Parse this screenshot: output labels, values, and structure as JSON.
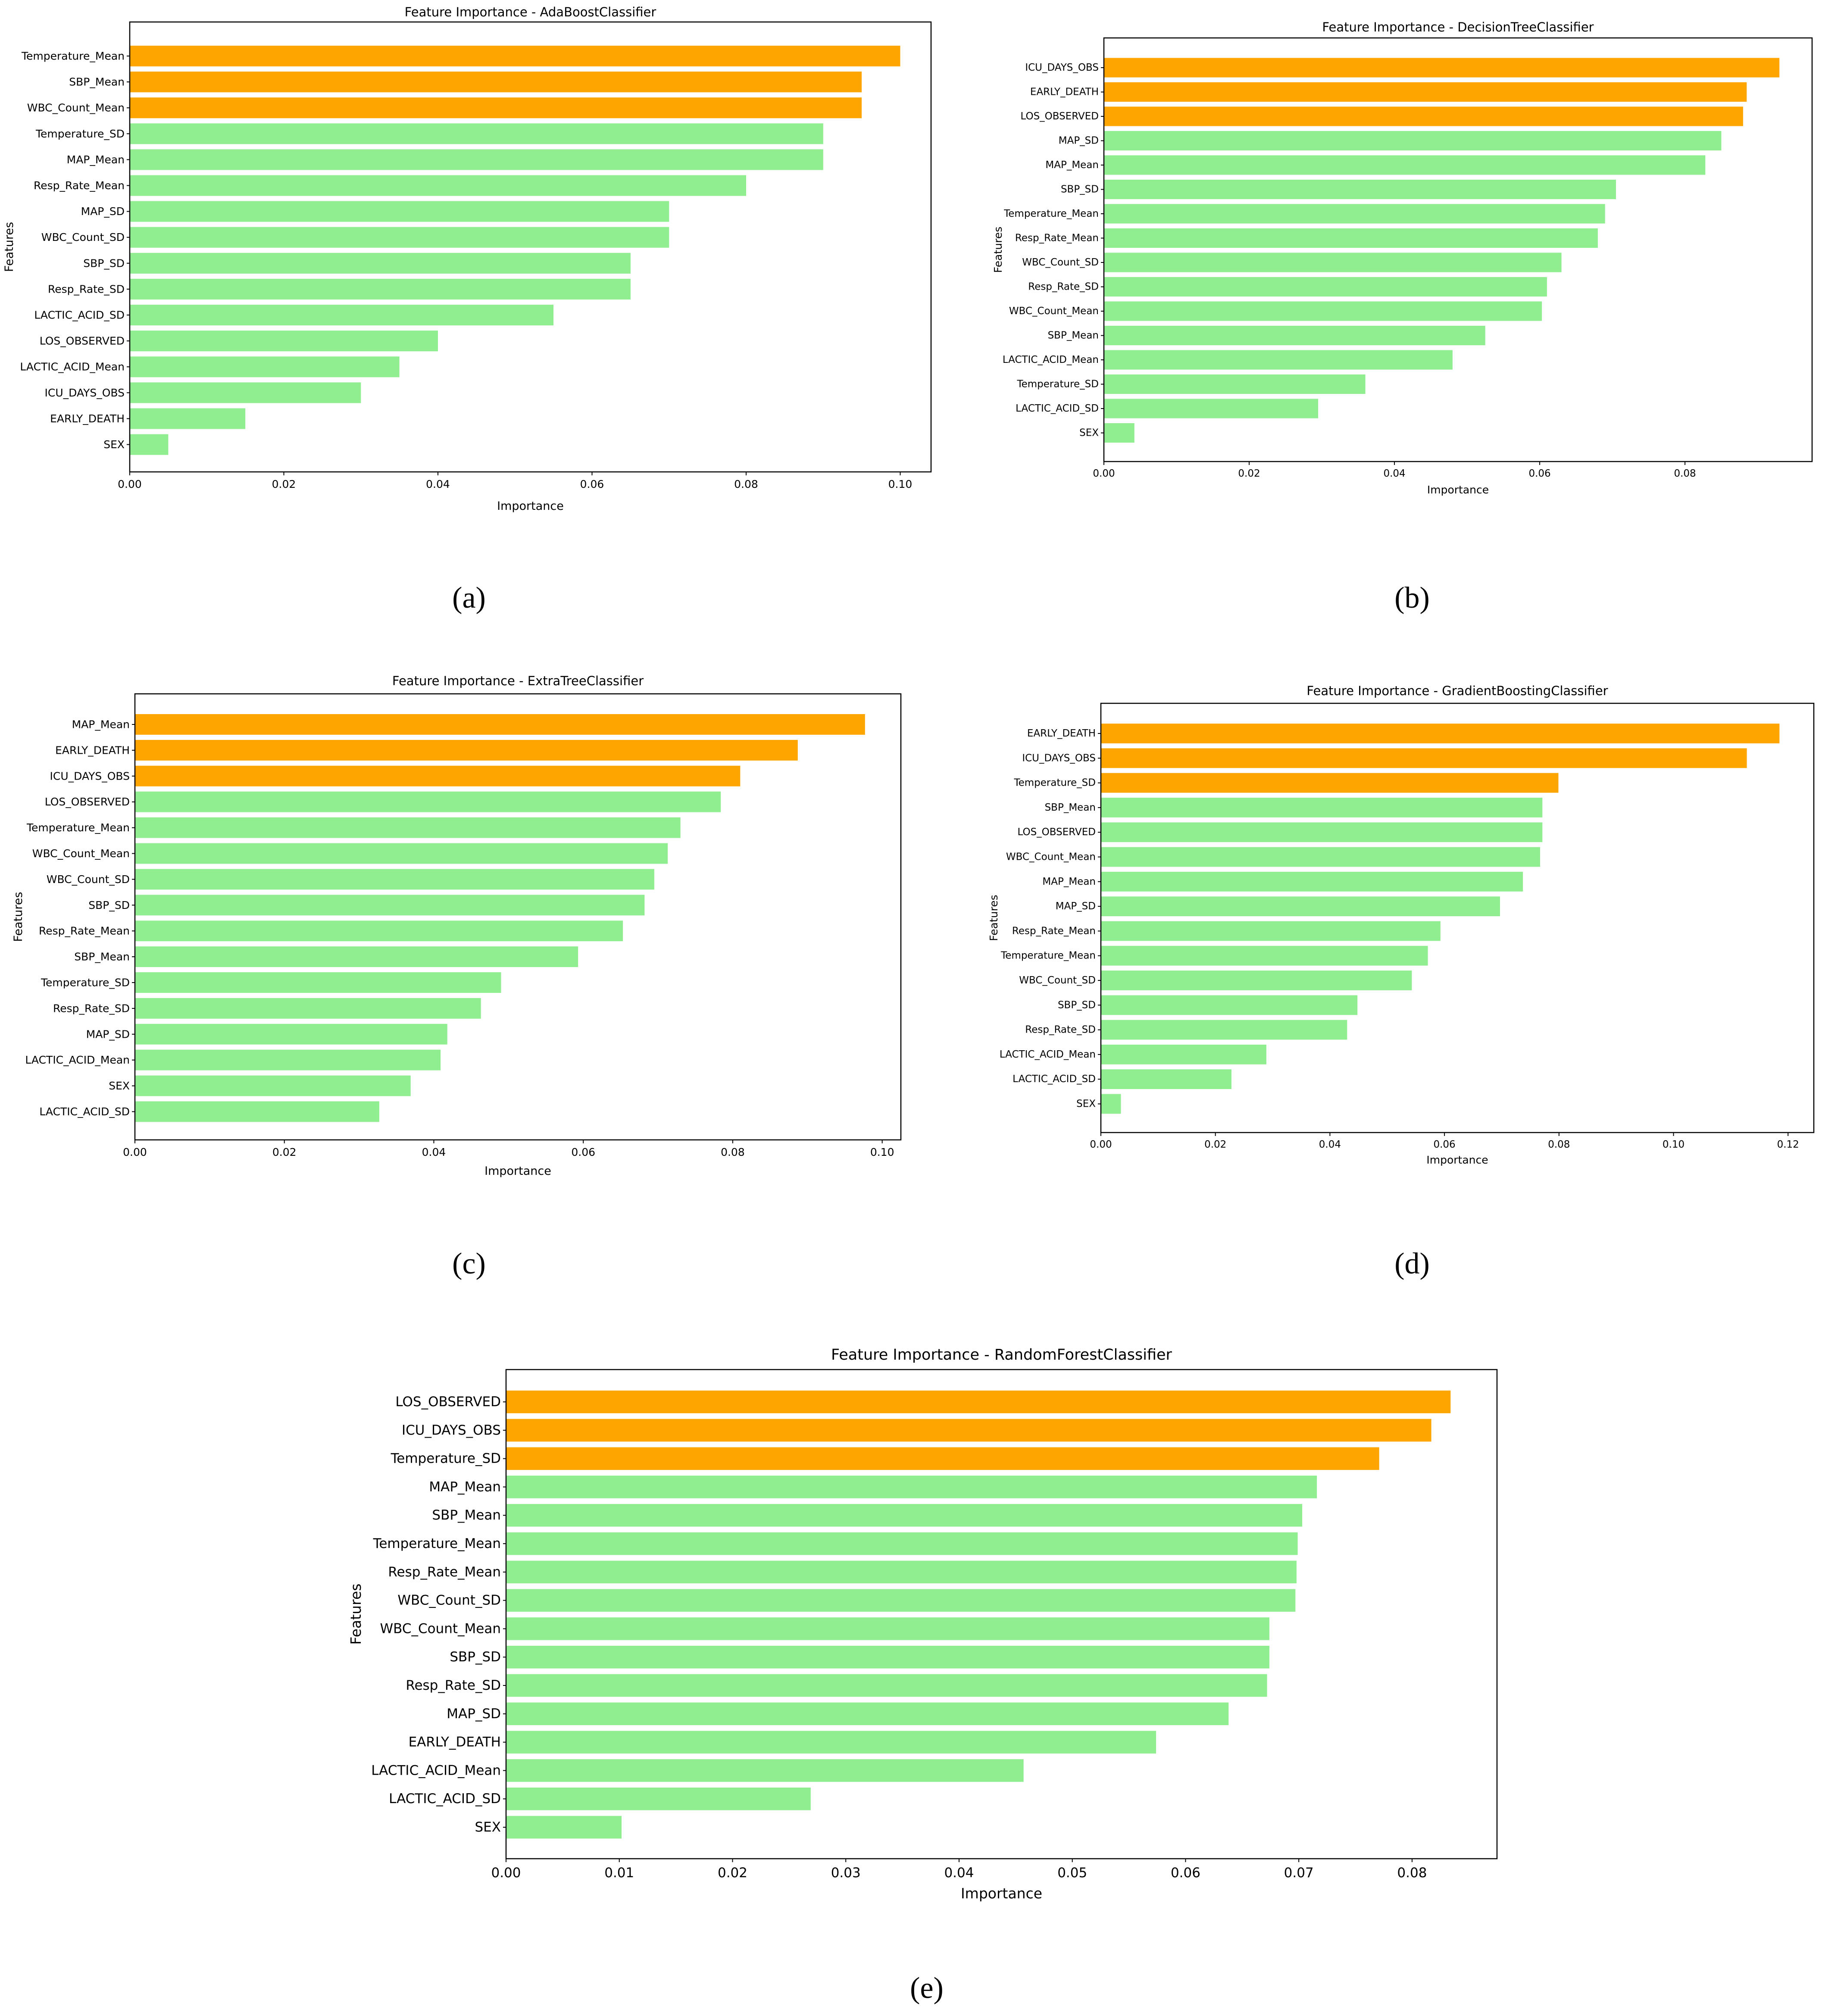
{
  "figure": {
    "captions": [
      "(a)",
      "(b)",
      "(c)",
      "(d)",
      "(e)"
    ]
  },
  "colors": {
    "highlight": "#ffa500",
    "default": "#90ee90",
    "axes": "#000000"
  },
  "chart_data": [
    {
      "id": "a",
      "type": "bar",
      "orientation": "horizontal",
      "title": "Feature Importance - AdaBoostClassifier",
      "xlabel": "Importance",
      "ylabel": "Features",
      "xlim": [
        0,
        0.104
      ],
      "xticks": [
        "0.00",
        "0.02",
        "0.04",
        "0.06",
        "0.08",
        "0.10"
      ],
      "xtick_values": [
        0,
        0.02,
        0.04,
        0.06,
        0.08,
        0.1
      ],
      "top_n_highlighted": 3,
      "categories": [
        "Temperature_Mean",
        "SBP_Mean",
        "WBC_Count_Mean",
        "Temperature_SD",
        "MAP_Mean",
        "Resp_Rate_Mean",
        "MAP_SD",
        "WBC_Count_SD",
        "SBP_SD",
        "Resp_Rate_SD",
        "LACTIC_ACID_SD",
        "LOS_OBSERVED",
        "LACTIC_ACID_Mean",
        "ICU_DAYS_OBS",
        "EARLY_DEATH",
        "SEX"
      ],
      "values": [
        0.1,
        0.095,
        0.095,
        0.09,
        0.09,
        0.08,
        0.07,
        0.07,
        0.065,
        0.065,
        0.055,
        0.04,
        0.035,
        0.03,
        0.015,
        0.005
      ]
    },
    {
      "id": "b",
      "type": "bar",
      "orientation": "horizontal",
      "title": "Feature Importance - DecisionTreeClassifier",
      "xlabel": "Importance",
      "ylabel": "Features",
      "xlim": [
        0,
        0.0975
      ],
      "xticks": [
        "0.00",
        "0.02",
        "0.04",
        "0.06",
        "0.08"
      ],
      "xtick_values": [
        0,
        0.02,
        0.04,
        0.06,
        0.08
      ],
      "top_n_highlighted": 3,
      "categories": [
        "ICU_DAYS_OBS",
        "EARLY_DEATH",
        "LOS_OBSERVED",
        "MAP_SD",
        "MAP_Mean",
        "SBP_SD",
        "Temperature_Mean",
        "Resp_Rate_Mean",
        "WBC_Count_SD",
        "Resp_Rate_SD",
        "WBC_Count_Mean",
        "SBP_Mean",
        "LACTIC_ACID_Mean",
        "Temperature_SD",
        "LACTIC_ACID_SD",
        "SEX"
      ],
      "values": [
        0.093,
        0.0885,
        0.088,
        0.085,
        0.0828,
        0.0705,
        0.069,
        0.068,
        0.063,
        0.061,
        0.0603,
        0.0525,
        0.048,
        0.036,
        0.0295,
        0.0042
      ]
    },
    {
      "id": "c",
      "type": "bar",
      "orientation": "horizontal",
      "title": "Feature Importance - ExtraTreeClassifier",
      "xlabel": "Importance",
      "ylabel": "Features",
      "xlim": [
        0,
        0.1025
      ],
      "xticks": [
        "0.00",
        "0.02",
        "0.04",
        "0.06",
        "0.08",
        "0.10"
      ],
      "xtick_values": [
        0,
        0.02,
        0.04,
        0.06,
        0.08,
        0.1
      ],
      "top_n_highlighted": 3,
      "categories": [
        "MAP_Mean",
        "EARLY_DEATH",
        "ICU_DAYS_OBS",
        "LOS_OBSERVED",
        "Temperature_Mean",
        "WBC_Count_Mean",
        "WBC_Count_SD",
        "SBP_SD",
        "Resp_Rate_Mean",
        "SBP_Mean",
        "Temperature_SD",
        "Resp_Rate_SD",
        "MAP_SD",
        "LACTIC_ACID_Mean",
        "SEX",
        "LACTIC_ACID_SD"
      ],
      "values": [
        0.0977,
        0.0887,
        0.081,
        0.0784,
        0.073,
        0.0713,
        0.0695,
        0.0682,
        0.0653,
        0.0593,
        0.049,
        0.0463,
        0.0418,
        0.0409,
        0.0369,
        0.0327
      ]
    },
    {
      "id": "d",
      "type": "bar",
      "orientation": "horizontal",
      "title": "Feature Importance - GradientBoostingClassifier",
      "xlabel": "Importance",
      "ylabel": "Features",
      "xlim": [
        0,
        0.1245
      ],
      "xticks": [
        "0.00",
        "0.02",
        "0.04",
        "0.06",
        "0.08",
        "0.10",
        "0.12"
      ],
      "xtick_values": [
        0,
        0.02,
        0.04,
        0.06,
        0.08,
        0.1,
        0.12
      ],
      "top_n_highlighted": 3,
      "categories": [
        "EARLY_DEATH",
        "ICU_DAYS_OBS",
        "Temperature_SD",
        "SBP_Mean",
        "LOS_OBSERVED",
        "WBC_Count_Mean",
        "MAP_Mean",
        "MAP_SD",
        "Resp_Rate_Mean",
        "Temperature_Mean",
        "WBC_Count_SD",
        "SBP_SD",
        "Resp_Rate_SD",
        "LACTIC_ACID_Mean",
        "LACTIC_ACID_SD",
        "SEX"
      ],
      "values": [
        0.1185,
        0.1128,
        0.0799,
        0.0771,
        0.0771,
        0.0767,
        0.0737,
        0.0697,
        0.0593,
        0.0571,
        0.0543,
        0.0448,
        0.043,
        0.0289,
        0.0228,
        0.0035
      ]
    },
    {
      "id": "e",
      "type": "bar",
      "orientation": "horizontal",
      "title": "Feature Importance - RandomForestClassifier",
      "xlabel": "Importance",
      "ylabel": "Features",
      "xlim": [
        0,
        0.0875
      ],
      "xticks": [
        "0.00",
        "0.01",
        "0.02",
        "0.03",
        "0.04",
        "0.05",
        "0.06",
        "0.07",
        "0.08"
      ],
      "xtick_values": [
        0,
        0.01,
        0.02,
        0.03,
        0.04,
        0.05,
        0.06,
        0.07,
        0.08
      ],
      "top_n_highlighted": 3,
      "categories": [
        "LOS_OBSERVED",
        "ICU_DAYS_OBS",
        "Temperature_SD",
        "MAP_Mean",
        "SBP_Mean",
        "Temperature_Mean",
        "Resp_Rate_Mean",
        "WBC_Count_SD",
        "WBC_Count_Mean",
        "SBP_SD",
        "Resp_Rate_SD",
        "MAP_SD",
        "EARLY_DEATH",
        "LACTIC_ACID_Mean",
        "LACTIC_ACID_SD",
        "SEX"
      ],
      "values": [
        0.0834,
        0.0817,
        0.0771,
        0.0716,
        0.0703,
        0.0699,
        0.0698,
        0.0697,
        0.0674,
        0.0674,
        0.0672,
        0.0638,
        0.0574,
        0.0457,
        0.0269,
        0.0102
      ]
    }
  ]
}
